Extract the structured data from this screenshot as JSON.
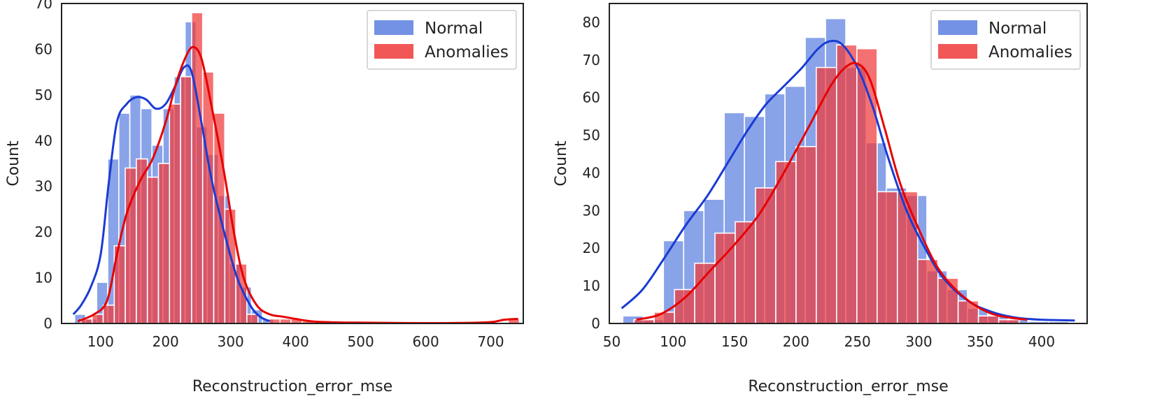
{
  "colors": {
    "normal_fill": "#5b7fe0",
    "normal_line": "#1a3bd4",
    "anomaly_fill": "#f03a3a",
    "anomaly_line": "#e60000",
    "overlap_fill": "#c22850"
  },
  "chart_data": [
    {
      "type": "bar",
      "subtype": "histogram-with-kde",
      "xlabel": "Reconstruction_error_mse",
      "ylabel": "Count",
      "xlim": [
        40,
        750
      ],
      "ylim": [
        0,
        70
      ],
      "xticks": [
        100,
        200,
        300,
        400,
        500,
        600,
        700
      ],
      "yticks": [
        0,
        10,
        20,
        30,
        40,
        50,
        60,
        70
      ],
      "legend": {
        "position": "top-right",
        "entries": [
          "Normal",
          "Anomalies"
        ]
      },
      "series": [
        {
          "name": "Normal",
          "bin_width": 17,
          "bins": [
            {
              "x0": 60,
              "count": 2
            },
            {
              "x0": 77,
              "count": 1
            },
            {
              "x0": 94,
              "count": 9
            },
            {
              "x0": 111,
              "count": 36
            },
            {
              "x0": 128,
              "count": 46
            },
            {
              "x0": 145,
              "count": 50
            },
            {
              "x0": 162,
              "count": 47
            },
            {
              "x0": 179,
              "count": 39
            },
            {
              "x0": 196,
              "count": 47
            },
            {
              "x0": 213,
              "count": 54
            },
            {
              "x0": 230,
              "count": 66
            },
            {
              "x0": 247,
              "count": 43
            },
            {
              "x0": 264,
              "count": 37
            },
            {
              "x0": 281,
              "count": 28
            },
            {
              "x0": 298,
              "count": 13
            },
            {
              "x0": 315,
              "count": 8
            },
            {
              "x0": 332,
              "count": 3
            },
            {
              "x0": 349,
              "count": 1
            }
          ],
          "kde": [
            [
              58,
              2
            ],
            [
              70,
              4
            ],
            [
              85,
              8
            ],
            [
              100,
              15
            ],
            [
              112,
              30
            ],
            [
              125,
              44
            ],
            [
              140,
              48
            ],
            [
              155,
              49.5
            ],
            [
              170,
              49
            ],
            [
              185,
              47
            ],
            [
              200,
              48
            ],
            [
              215,
              52
            ],
            [
              228,
              56
            ],
            [
              240,
              55
            ],
            [
              255,
              44
            ],
            [
              270,
              32
            ],
            [
              290,
              20
            ],
            [
              310,
              10
            ],
            [
              330,
              4
            ],
            [
              345,
              1.5
            ],
            [
              360,
              0.5
            ]
          ]
        },
        {
          "name": "Anomalies",
          "bin_width": 17,
          "bins": [
            {
              "x0": 70,
              "count": 1
            },
            {
              "x0": 87,
              "count": 2
            },
            {
              "x0": 104,
              "count": 4
            },
            {
              "x0": 121,
              "count": 17
            },
            {
              "x0": 138,
              "count": 34
            },
            {
              "x0": 155,
              "count": 36
            },
            {
              "x0": 172,
              "count": 32
            },
            {
              "x0": 189,
              "count": 35
            },
            {
              "x0": 206,
              "count": 48
            },
            {
              "x0": 223,
              "count": 54
            },
            {
              "x0": 240,
              "count": 68
            },
            {
              "x0": 257,
              "count": 55
            },
            {
              "x0": 274,
              "count": 46
            },
            {
              "x0": 291,
              "count": 25
            },
            {
              "x0": 308,
              "count": 13
            },
            {
              "x0": 325,
              "count": 2
            },
            {
              "x0": 342,
              "count": 0
            },
            {
              "x0": 359,
              "count": 1
            },
            {
              "x0": 376,
              "count": 1
            },
            {
              "x0": 393,
              "count": 1
            },
            {
              "x0": 410,
              "count": 0.5
            },
            {
              "x0": 727,
              "count": 1
            }
          ],
          "kde": [
            [
              65,
              0.5
            ],
            [
              90,
              2
            ],
            [
              110,
              5
            ],
            [
              125,
              15
            ],
            [
              140,
              24
            ],
            [
              160,
              31
            ],
            [
              180,
              36
            ],
            [
              200,
              44
            ],
            [
              215,
              52
            ],
            [
              230,
              58
            ],
            [
              242,
              60.5
            ],
            [
              255,
              58
            ],
            [
              270,
              48
            ],
            [
              290,
              33
            ],
            [
              305,
              20
            ],
            [
              320,
              10
            ],
            [
              340,
              4
            ],
            [
              360,
              2
            ],
            [
              380,
              1.5
            ],
            [
              400,
              1
            ],
            [
              430,
              0.4
            ],
            [
              480,
              0.2
            ],
            [
              550,
              0.1
            ],
            [
              650,
              0.1
            ],
            [
              700,
              0.3
            ],
            [
              720,
              0.8
            ],
            [
              742,
              1
            ]
          ]
        }
      ]
    },
    {
      "type": "bar",
      "subtype": "histogram-with-kde",
      "xlabel": "Reconstruction_error_mse",
      "ylabel": "Count",
      "xlim": [
        48,
        437
      ],
      "ylim": [
        0,
        85
      ],
      "xticks": [
        50,
        100,
        150,
        200,
        250,
        300,
        350,
        400
      ],
      "yticks": [
        0,
        10,
        20,
        30,
        40,
        50,
        60,
        70,
        80
      ],
      "legend": {
        "position": "top-right",
        "entries": [
          "Normal",
          "Anomalies"
        ]
      },
      "series": [
        {
          "name": "Normal",
          "bin_width": 16.5,
          "bins": [
            {
              "x0": 59,
              "count": 2
            },
            {
              "x0": 75.5,
              "count": 1
            },
            {
              "x0": 92,
              "count": 22
            },
            {
              "x0": 108.5,
              "count": 30
            },
            {
              "x0": 125,
              "count": 33
            },
            {
              "x0": 141.5,
              "count": 56
            },
            {
              "x0": 158,
              "count": 55
            },
            {
              "x0": 174.5,
              "count": 61
            },
            {
              "x0": 191,
              "count": 63
            },
            {
              "x0": 207.5,
              "count": 76
            },
            {
              "x0": 224,
              "count": 81
            },
            {
              "x0": 240.5,
              "count": 68
            },
            {
              "x0": 257,
              "count": 48
            },
            {
              "x0": 273.5,
              "count": 36
            },
            {
              "x0": 290,
              "count": 34
            },
            {
              "x0": 306.5,
              "count": 14
            },
            {
              "x0": 323,
              "count": 9
            },
            {
              "x0": 339.5,
              "count": 4
            },
            {
              "x0": 356,
              "count": 2
            },
            {
              "x0": 372.5,
              "count": 1
            },
            {
              "x0": 389,
              "count": 0.5
            },
            {
              "x0": 405.5,
              "count": 0.5
            }
          ],
          "kde": [
            [
              58,
              4
            ],
            [
              75,
              9
            ],
            [
              92,
              17
            ],
            [
              110,
              26
            ],
            [
              128,
              34
            ],
            [
              145,
              43
            ],
            [
              160,
              51
            ],
            [
              175,
              58
            ],
            [
              190,
              63
            ],
            [
              205,
              68
            ],
            [
              218,
              73
            ],
            [
              228,
              75
            ],
            [
              238,
              74
            ],
            [
              250,
              68
            ],
            [
              262,
              58
            ],
            [
              275,
              44
            ],
            [
              290,
              30
            ],
            [
              305,
              20
            ],
            [
              320,
              12
            ],
            [
              340,
              6
            ],
            [
              360,
              3
            ],
            [
              380,
              1.5
            ],
            [
              400,
              1
            ],
            [
              427,
              0.8
            ]
          ]
        },
        {
          "name": "Anomalies",
          "bin_width": 16.5,
          "bins": [
            {
              "x0": 68,
              "count": 1
            },
            {
              "x0": 84.5,
              "count": 3
            },
            {
              "x0": 101,
              "count": 9
            },
            {
              "x0": 117.5,
              "count": 16
            },
            {
              "x0": 134,
              "count": 24
            },
            {
              "x0": 150.5,
              "count": 27
            },
            {
              "x0": 167,
              "count": 36
            },
            {
              "x0": 183.5,
              "count": 43
            },
            {
              "x0": 200,
              "count": 47
            },
            {
              "x0": 216.5,
              "count": 68
            },
            {
              "x0": 233,
              "count": 74
            },
            {
              "x0": 249.5,
              "count": 73
            },
            {
              "x0": 266,
              "count": 35
            },
            {
              "x0": 282.5,
              "count": 35
            },
            {
              "x0": 299,
              "count": 17
            },
            {
              "x0": 315.5,
              "count": 12
            },
            {
              "x0": 332,
              "count": 6
            },
            {
              "x0": 348.5,
              "count": 2
            },
            {
              "x0": 365,
              "count": 1
            }
          ],
          "kde": [
            [
              70,
              1
            ],
            [
              90,
              2.5
            ],
            [
              110,
              7
            ],
            [
              130,
              14
            ],
            [
              150,
              21
            ],
            [
              170,
              29
            ],
            [
              190,
              40
            ],
            [
              210,
              52
            ],
            [
              228,
              63
            ],
            [
              240,
              68
            ],
            [
              250,
              69
            ],
            [
              260,
              65
            ],
            [
              272,
              52
            ],
            [
              285,
              37
            ],
            [
              300,
              25
            ],
            [
              315,
              15
            ],
            [
              330,
              9
            ],
            [
              345,
              5
            ],
            [
              360,
              2.5
            ],
            [
              375,
              1.5
            ],
            [
              388,
              1
            ]
          ]
        }
      ]
    }
  ]
}
